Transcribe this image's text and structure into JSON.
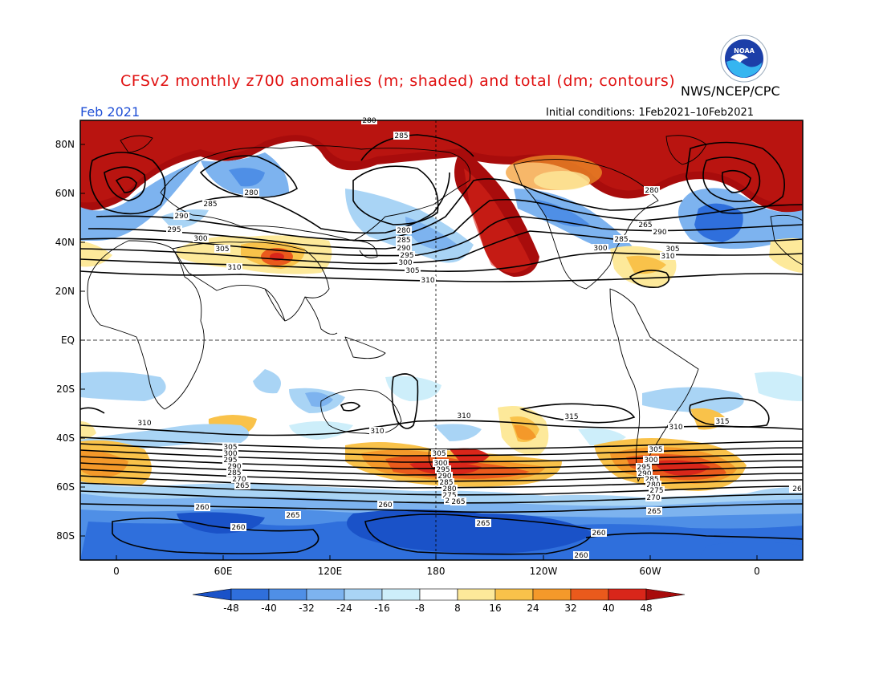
{
  "title": "CFSv2 monthly z700 anomalies (m; shaded) and total (dm; contours)",
  "agency": "NWS/NCEP/CPC",
  "logo_text": "NOAA",
  "month": "Feb 2021",
  "initial_conditions": "Initial conditions: 1Feb2021–10Feb2021",
  "lat_labels": [
    "80N",
    "60N",
    "40N",
    "20N",
    "EQ",
    "20S",
    "40S",
    "60S",
    "80S"
  ],
  "lon_labels": [
    "0",
    "60E",
    "120E",
    "180",
    "120W",
    "60W",
    "0"
  ],
  "colorbar": {
    "ticks": [
      "-48",
      "-40",
      "-32",
      "-24",
      "-16",
      "-8",
      "8",
      "16",
      "24",
      "32",
      "40",
      "48"
    ],
    "colors": [
      "#1a52c8",
      "#2f6fdc",
      "#4f8fe6",
      "#7db3ef",
      "#a9d4f5",
      "#cdeefa",
      "#ffffff",
      "#fde99a",
      "#f9c24a",
      "#f4992a",
      "#ea5a1c",
      "#d9261a",
      "#a80c0c"
    ]
  },
  "contour_labels": [
    "280",
    "285",
    "290",
    "295",
    "300",
    "305",
    "310",
    "315",
    "270",
    "265",
    "260"
  ],
  "contour_label_marks": [
    {
      "text": "280"
    },
    {
      "text": "285"
    },
    {
      "text": "280"
    },
    {
      "text": "285"
    },
    {
      "text": "290"
    },
    {
      "text": "295"
    },
    {
      "text": "300"
    },
    {
      "text": "305"
    },
    {
      "text": "310"
    },
    {
      "text": "280"
    },
    {
      "text": "285"
    },
    {
      "text": "290"
    },
    {
      "text": "295"
    },
    {
      "text": "300"
    },
    {
      "text": "305"
    },
    {
      "text": "310"
    },
    {
      "text": "280"
    },
    {
      "text": "265"
    },
    {
      "text": "290"
    },
    {
      "text": "285"
    },
    {
      "text": "300"
    },
    {
      "text": "305"
    },
    {
      "text": "310"
    },
    {
      "text": "310"
    },
    {
      "text": "310"
    },
    {
      "text": "310"
    },
    {
      "text": "315"
    },
    {
      "text": "310"
    },
    {
      "text": "315"
    },
    {
      "text": "305"
    },
    {
      "text": "300"
    },
    {
      "text": "295"
    },
    {
      "text": "290"
    },
    {
      "text": "285"
    },
    {
      "text": "270"
    },
    {
      "text": "265"
    },
    {
      "text": "305"
    },
    {
      "text": "300"
    },
    {
      "text": "295"
    },
    {
      "text": "290"
    },
    {
      "text": "285"
    },
    {
      "text": "280"
    },
    {
      "text": "275"
    },
    {
      "text": "270"
    },
    {
      "text": "265"
    },
    {
      "text": "305"
    },
    {
      "text": "300"
    },
    {
      "text": "295"
    },
    {
      "text": "290"
    },
    {
      "text": "285"
    },
    {
      "text": "280"
    },
    {
      "text": "275"
    },
    {
      "text": "270"
    },
    {
      "text": "265"
    },
    {
      "text": "260"
    },
    {
      "text": "265"
    },
    {
      "text": "260"
    },
    {
      "text": "260"
    },
    {
      "text": "265"
    },
    {
      "text": "260"
    },
    {
      "text": "260"
    },
    {
      "text": "26"
    }
  ]
}
